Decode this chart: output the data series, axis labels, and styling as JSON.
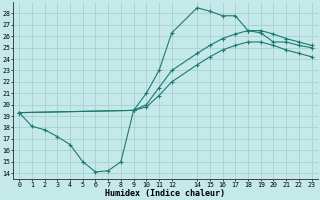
{
  "xlabel": "Humidex (Indice chaleur)",
  "xlim": [
    -0.5,
    23.5
  ],
  "ylim": [
    13.5,
    29.0
  ],
  "yticks": [
    14,
    15,
    16,
    17,
    18,
    19,
    20,
    21,
    22,
    23,
    24,
    25,
    26,
    27,
    28
  ],
  "xticks": [
    0,
    1,
    2,
    3,
    4,
    5,
    6,
    7,
    8,
    9,
    10,
    11,
    12,
    14,
    15,
    16,
    17,
    18,
    19,
    20,
    21,
    22,
    23
  ],
  "xtick_labels": [
    "0",
    "1",
    "2",
    "3",
    "4",
    "5",
    "6",
    "7",
    "8",
    "9",
    "10",
    "11",
    "12",
    "14",
    "15",
    "16",
    "17",
    "18",
    "19",
    "20",
    "21",
    "22",
    "23"
  ],
  "bg_color": "#c5e8e8",
  "grid_color": "#9ecece",
  "line_color": "#1e7a6e",
  "curve1_x": [
    0,
    1,
    2,
    3,
    4,
    5,
    6,
    7,
    8,
    9,
    10,
    11,
    12,
    14,
    15,
    16,
    17,
    18,
    19,
    20,
    21,
    22,
    23
  ],
  "curve1_y": [
    19.3,
    18.1,
    17.8,
    17.2,
    16.5,
    15.0,
    14.1,
    14.2,
    15.0,
    19.5,
    21.0,
    23.0,
    26.3,
    28.5,
    28.2,
    27.8,
    27.8,
    26.5,
    26.3,
    25.5,
    25.5,
    25.2,
    25.0
  ],
  "curve2_x": [
    0,
    9,
    10,
    11,
    12,
    14,
    15,
    16,
    17,
    18,
    19,
    20,
    21,
    22,
    23
  ],
  "curve2_y": [
    19.3,
    19.5,
    20.0,
    21.5,
    23.0,
    24.5,
    25.2,
    25.8,
    26.2,
    26.5,
    26.5,
    26.2,
    25.8,
    25.5,
    25.2
  ],
  "curve3_x": [
    0,
    9,
    10,
    11,
    12,
    14,
    15,
    16,
    17,
    18,
    19,
    20,
    21,
    22,
    23
  ],
  "curve3_y": [
    19.3,
    19.5,
    19.8,
    20.8,
    22.0,
    23.5,
    24.2,
    24.8,
    25.2,
    25.5,
    25.5,
    25.2,
    24.8,
    24.5,
    24.2
  ]
}
